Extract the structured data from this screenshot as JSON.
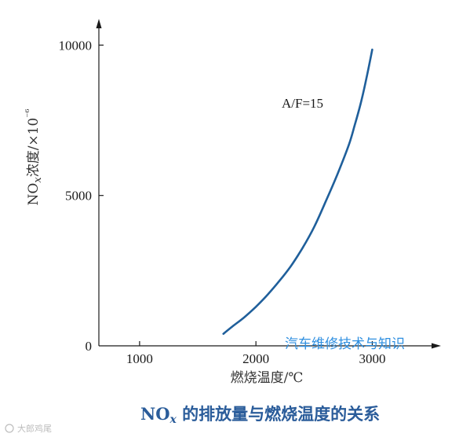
{
  "colors": {
    "curve": "#1f5f9b",
    "axis": "#1a1a1a",
    "caption": "#2a5c9a",
    "watermark": "#2f8fe0"
  },
  "chart_data": {
    "type": "line",
    "xlim": [
      650,
      3550
    ],
    "ylim": [
      0,
      11500
    ],
    "x_ticks": [
      {
        "value": 1000,
        "label": "1000"
      },
      {
        "value": 2000,
        "label": "2000"
      },
      {
        "value": 3000,
        "label": "3000"
      }
    ],
    "y_ticks": [
      {
        "value": 0,
        "label": "0"
      },
      {
        "value": 5000,
        "label": "5000"
      },
      {
        "value": 10000,
        "label": "10000"
      }
    ],
    "xlabel": "燃烧温度/℃",
    "ylabel": "NOx浓度/×10⁻⁶",
    "grid": false,
    "series": [
      {
        "name": "A/F=15",
        "x": [
          1720,
          1800,
          1900,
          2000,
          2100,
          2200,
          2300,
          2400,
          2500,
          2600,
          2700,
          2800,
          2850,
          2900,
          2950,
          3000
        ],
        "y": [
          400,
          650,
          950,
          1300,
          1700,
          2150,
          2650,
          3250,
          3950,
          4800,
          5700,
          6700,
          7350,
          8050,
          8900,
          9850
        ]
      }
    ]
  },
  "annotation": {
    "curve_label": "A/F=15"
  },
  "watermark": {
    "text": "汽车维修技术与知识"
  },
  "caption": {
    "prefix": "NO",
    "sub": "x",
    "suffix": " 的排放量与燃烧温度的关系"
  },
  "corner_mark": {
    "text": "大郎鸡尾"
  }
}
